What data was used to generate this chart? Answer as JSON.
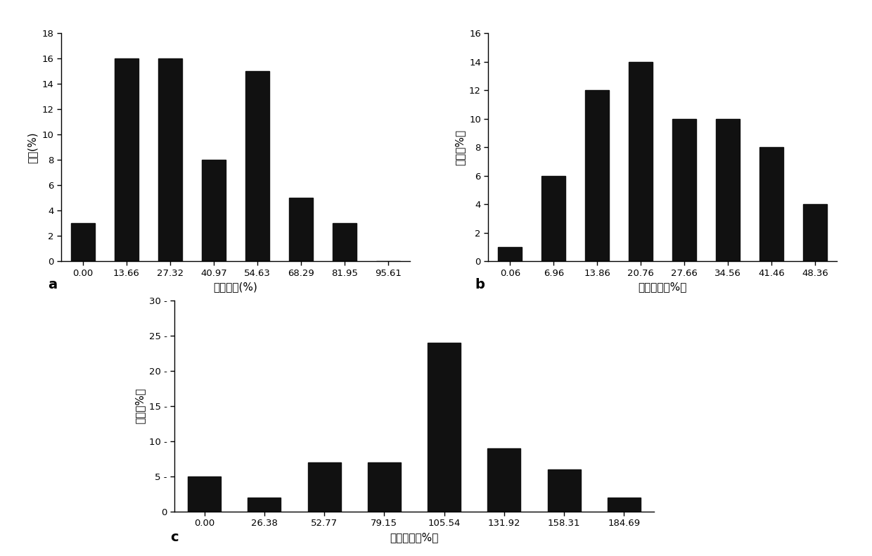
{
  "chart_a": {
    "categories": [
      "0.00",
      "13.66",
      "27.32",
      "40.97",
      "54.63",
      "68.29",
      "81.95",
      "95.61"
    ],
    "values": [
      3,
      16,
      16,
      8,
      15,
      5,
      3,
      0
    ],
    "xlabel": "雌虫指数(%)",
    "ylabel": "频率(%)",
    "ylim": [
      0,
      18
    ],
    "yticks": [
      0,
      2,
      4,
      6,
      8,
      10,
      12,
      14,
      16,
      18
    ],
    "label": "a"
  },
  "chart_b": {
    "categories": [
      "0.06",
      "6.96",
      "13.86",
      "20.76",
      "27.66",
      "34.56",
      "41.46",
      "48.36"
    ],
    "values": [
      1,
      6,
      12,
      14,
      10,
      10,
      8,
      4
    ],
    "xlabel": "雌虫指数（%）",
    "ylabel": "频率（%）",
    "ylim": [
      0,
      16
    ],
    "yticks": [
      0,
      2,
      4,
      6,
      8,
      10,
      12,
      14,
      16
    ],
    "label": "b"
  },
  "chart_c": {
    "categories": [
      "0.00",
      "26.38",
      "52.77",
      "79.15",
      "105.54",
      "131.92",
      "158.31",
      "184.69"
    ],
    "values": [
      5,
      2,
      7,
      7,
      24,
      9,
      6,
      2
    ],
    "xlabel": "雌虫指数（%）",
    "ylabel": "频率（%）",
    "ylim": [
      0,
      30
    ],
    "yticks": [
      0,
      5,
      10,
      15,
      20,
      25,
      30
    ],
    "ytick_labels": [
      "0",
      "5 -",
      "10 -",
      "15 -",
      "20 -",
      "25 -",
      "30 -"
    ],
    "label": "c"
  },
  "bar_color": "#111111",
  "bar_width": 0.55
}
